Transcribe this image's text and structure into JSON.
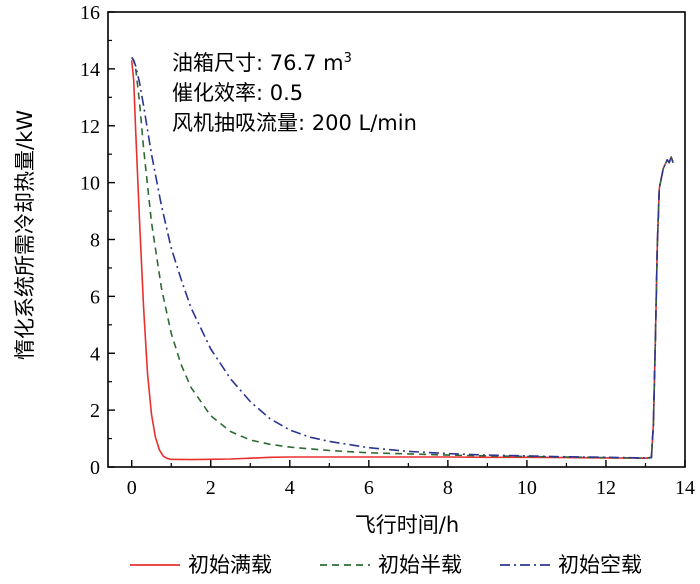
{
  "chart_data": {
    "type": "line",
    "title": "",
    "xlabel": "飞行时间/h",
    "ylabel": "惰化系统所需冷却热量/kW",
    "xlim": [
      -0.6,
      14
    ],
    "ylim": [
      0,
      16
    ],
    "xticks": [
      0,
      2,
      4,
      6,
      8,
      10,
      12,
      14
    ],
    "yticks": [
      0,
      2,
      4,
      6,
      8,
      10,
      12,
      14,
      16
    ],
    "grid": false,
    "legend_position": "bottom",
    "annotations": [
      {
        "prefix": "油箱尺寸: 76.7 m",
        "sup": "3"
      },
      {
        "prefix": "催化效率: 0.5",
        "sup": ""
      },
      {
        "prefix": "风机抽吸流量: 200 L/min",
        "sup": ""
      }
    ],
    "series": [
      {
        "name": "初始满载",
        "color": "#e8312f",
        "dash": "solid",
        "points": [
          [
            0,
            14.3
          ],
          [
            0.05,
            13.6
          ],
          [
            0.1,
            11.8
          ],
          [
            0.2,
            8.6
          ],
          [
            0.3,
            5.6
          ],
          [
            0.4,
            3.3
          ],
          [
            0.5,
            1.85
          ],
          [
            0.6,
            1.05
          ],
          [
            0.7,
            0.6
          ],
          [
            0.8,
            0.38
          ],
          [
            0.9,
            0.3
          ],
          [
            1,
            0.27
          ],
          [
            1.5,
            0.26
          ],
          [
            2,
            0.27
          ],
          [
            2.5,
            0.28
          ],
          [
            3,
            0.31
          ],
          [
            3.5,
            0.34
          ],
          [
            4,
            0.35
          ],
          [
            5,
            0.35
          ],
          [
            6,
            0.35
          ],
          [
            7,
            0.35
          ],
          [
            8,
            0.35
          ],
          [
            9,
            0.34
          ],
          [
            10,
            0.34
          ],
          [
            11,
            0.33
          ],
          [
            12,
            0.32
          ],
          [
            13,
            0.31
          ],
          [
            13.15,
            0.33
          ],
          [
            13.2,
            1.5
          ],
          [
            13.25,
            4.5
          ],
          [
            13.3,
            7.8
          ],
          [
            13.35,
            9.8
          ],
          [
            13.45,
            10.5
          ],
          [
            13.55,
            10.8
          ],
          [
            13.6,
            10.7
          ],
          [
            13.65,
            10.9
          ],
          [
            13.7,
            10.7
          ]
        ]
      },
      {
        "name": "初始半载",
        "color": "#2e6b34",
        "dash": "dashed",
        "points": [
          [
            0,
            14.4
          ],
          [
            0.05,
            14.3
          ],
          [
            0.1,
            14.0
          ],
          [
            0.2,
            12.8
          ],
          [
            0.3,
            11.2
          ],
          [
            0.5,
            8.6
          ],
          [
            0.75,
            6.3
          ],
          [
            1,
            4.7
          ],
          [
            1.25,
            3.6
          ],
          [
            1.5,
            2.8
          ],
          [
            2,
            1.8
          ],
          [
            2.5,
            1.25
          ],
          [
            3,
            0.95
          ],
          [
            3.5,
            0.8
          ],
          [
            4,
            0.7
          ],
          [
            5,
            0.58
          ],
          [
            6,
            0.5
          ],
          [
            7,
            0.46
          ],
          [
            8,
            0.42
          ],
          [
            9,
            0.39
          ],
          [
            10,
            0.37
          ],
          [
            11,
            0.35
          ],
          [
            12,
            0.33
          ],
          [
            13,
            0.31
          ],
          [
            13.15,
            0.33
          ],
          [
            13.2,
            1.5
          ],
          [
            13.25,
            4.5
          ],
          [
            13.3,
            7.8
          ],
          [
            13.35,
            9.8
          ],
          [
            13.45,
            10.5
          ],
          [
            13.55,
            10.8
          ],
          [
            13.6,
            10.7
          ],
          [
            13.65,
            10.9
          ],
          [
            13.7,
            10.7
          ]
        ]
      },
      {
        "name": "初始空载",
        "color": "#2c3591",
        "dash": "dashdot",
        "points": [
          [
            0,
            14.4
          ],
          [
            0.05,
            14.3
          ],
          [
            0.1,
            14.1
          ],
          [
            0.2,
            13.5
          ],
          [
            0.3,
            12.7
          ],
          [
            0.5,
            11.0
          ],
          [
            0.75,
            9.2
          ],
          [
            1,
            7.7
          ],
          [
            1.25,
            6.6
          ],
          [
            1.5,
            5.6
          ],
          [
            2,
            4.15
          ],
          [
            2.5,
            3.1
          ],
          [
            3,
            2.3
          ],
          [
            3.5,
            1.7
          ],
          [
            4,
            1.3
          ],
          [
            4.5,
            1.05
          ],
          [
            5,
            0.9
          ],
          [
            6,
            0.68
          ],
          [
            7,
            0.55
          ],
          [
            8,
            0.47
          ],
          [
            9,
            0.42
          ],
          [
            10,
            0.39
          ],
          [
            11,
            0.36
          ],
          [
            12,
            0.34
          ],
          [
            13,
            0.32
          ],
          [
            13.15,
            0.33
          ],
          [
            13.2,
            1.5
          ],
          [
            13.25,
            4.5
          ],
          [
            13.3,
            7.8
          ],
          [
            13.35,
            9.8
          ],
          [
            13.45,
            10.5
          ],
          [
            13.55,
            10.8
          ],
          [
            13.6,
            10.7
          ],
          [
            13.65,
            10.9
          ],
          [
            13.7,
            10.7
          ]
        ]
      }
    ]
  }
}
